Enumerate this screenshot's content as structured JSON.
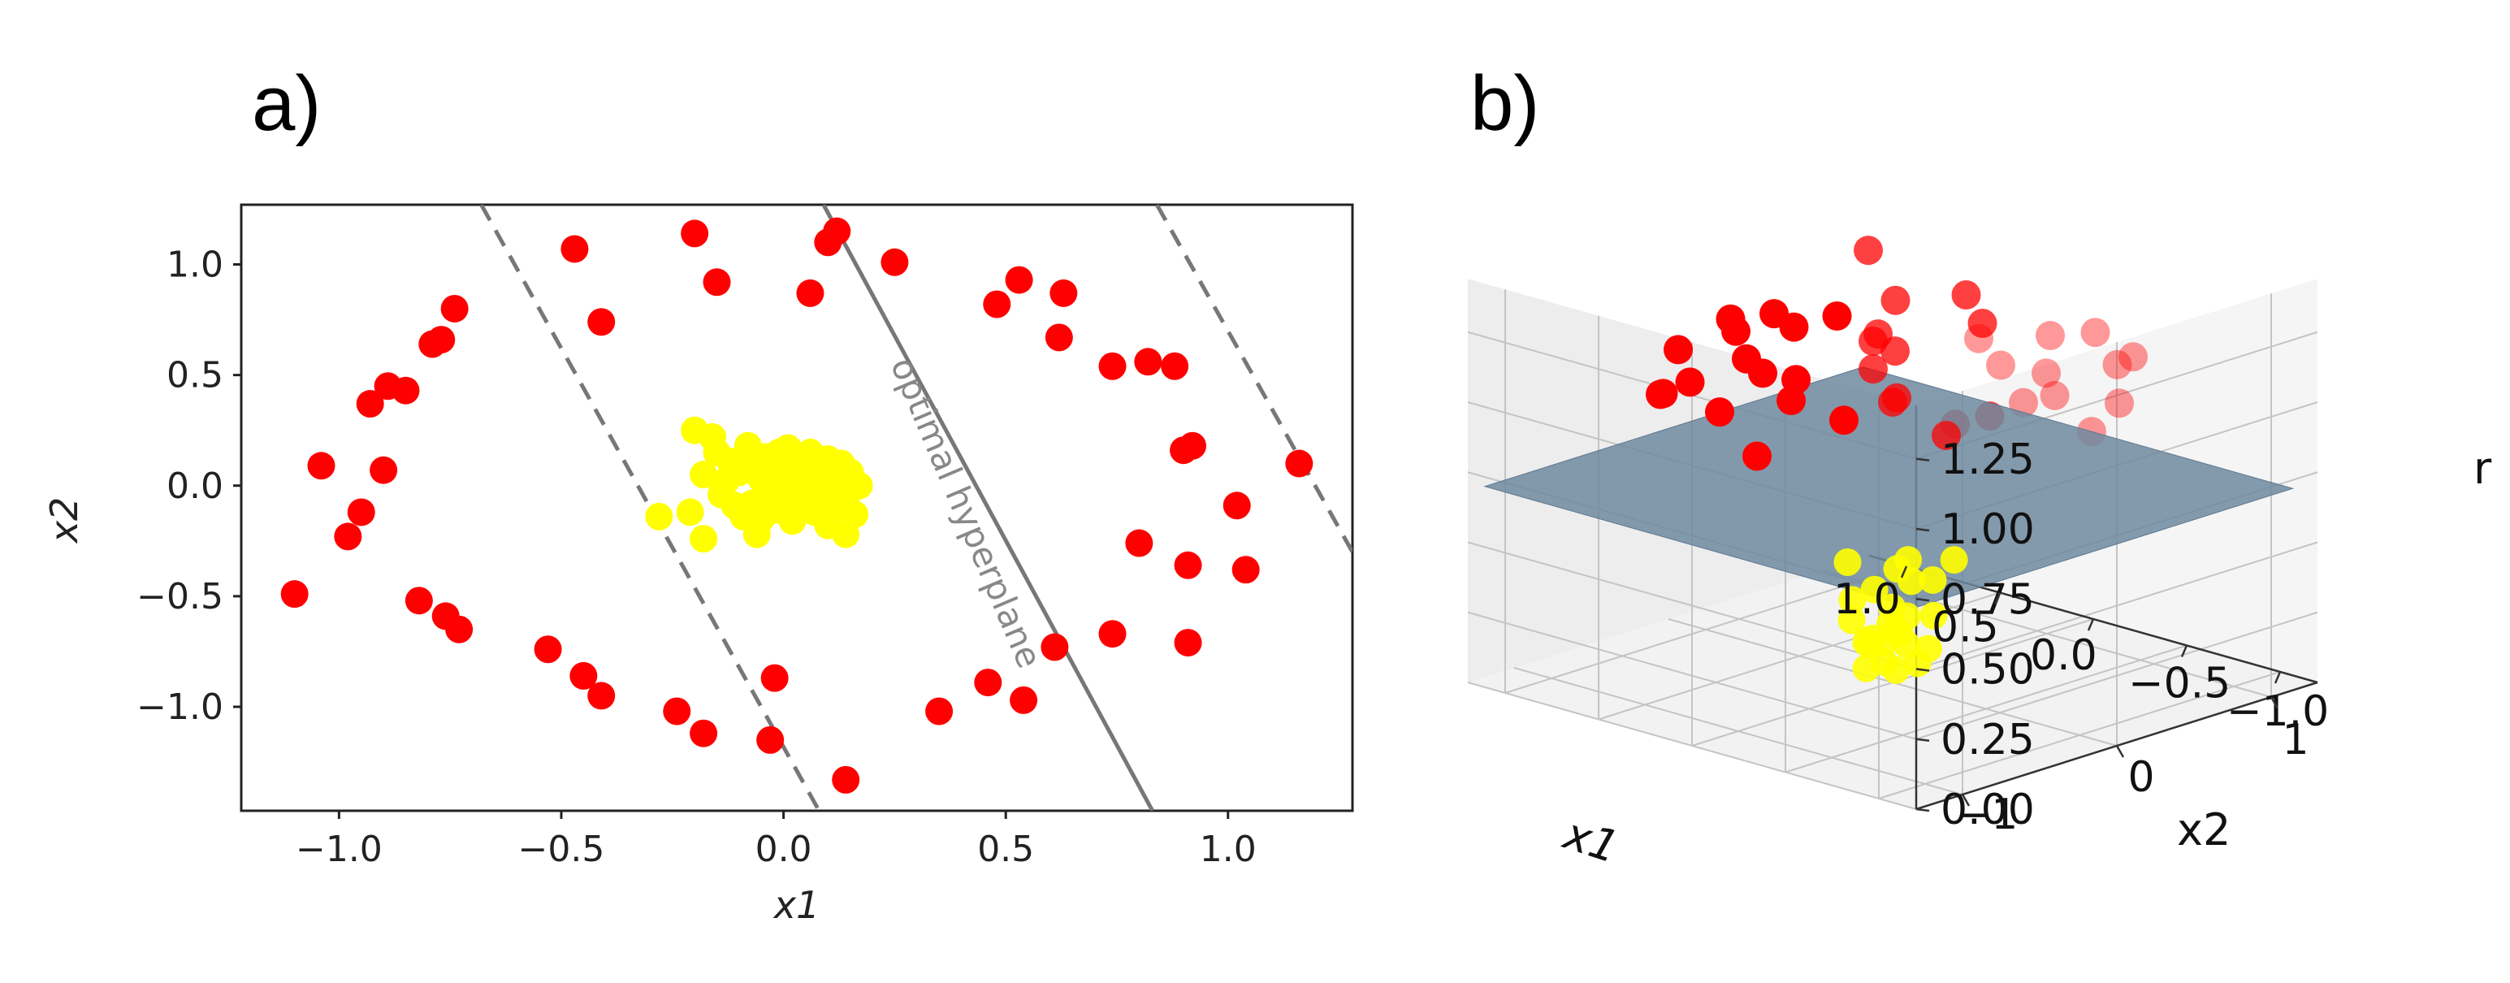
{
  "colors": {
    "class_outer": "#ff0000",
    "class_inner": "#ffff00",
    "plane": "#6f8aa0",
    "dash": "#777777",
    "solid": "#777777"
  },
  "panels": {
    "a_label": "a)",
    "b_label": "b)"
  },
  "chart_data": [
    {
      "type": "scatter",
      "panel": "a)",
      "xlabel": "x1",
      "ylabel": "x2",
      "xlim": [
        -1.22,
        1.28
      ],
      "ylim": [
        -1.47,
        1.27
      ],
      "xticks": [
        -1.0,
        -0.5,
        0.0,
        0.5,
        1.0
      ],
      "yticks": [
        1.0,
        0.5,
        0.0,
        -0.5,
        -1.0
      ],
      "xtick_labels": [
        "−1.0",
        "−0.5",
        "0.0",
        "0.5",
        "1.0"
      ],
      "ytick_labels": [
        "1.0",
        "0.5",
        "0.0",
        "−0.5",
        "−1.0"
      ],
      "annotation": "optimal hyperplane",
      "lines": [
        {
          "style": "dashed",
          "x": [
            -0.68,
            0.08
          ],
          "y": [
            1.27,
            -1.47
          ]
        },
        {
          "style": "solid",
          "x": [
            0.09,
            0.83
          ],
          "y": [
            1.27,
            -1.47
          ]
        },
        {
          "style": "dashed",
          "x": [
            0.84,
            1.28
          ],
          "y": [
            1.27,
            -0.3
          ]
        }
      ],
      "series": [
        {
          "color": "#ff0000",
          "points": [
            [
              -1.1,
              -0.49
            ],
            [
              -1.04,
              0.09
            ],
            [
              -0.98,
              -0.23
            ],
            [
              -0.95,
              -0.12
            ],
            [
              -0.93,
              0.37
            ],
            [
              -0.9,
              0.07
            ],
            [
              -0.89,
              0.45
            ],
            [
              -0.85,
              0.43
            ],
            [
              -0.82,
              -0.52
            ],
            [
              -0.79,
              0.64
            ],
            [
              -0.77,
              0.66
            ],
            [
              -0.76,
              -0.59
            ],
            [
              -0.74,
              0.8
            ],
            [
              -0.73,
              -0.65
            ],
            [
              -0.53,
              -0.74
            ],
            [
              -0.47,
              1.07
            ],
            [
              -0.45,
              -0.86
            ],
            [
              -0.41,
              0.74
            ],
            [
              -0.41,
              -0.95
            ],
            [
              -0.24,
              -1.02
            ],
            [
              -0.2,
              1.14
            ],
            [
              -0.18,
              -1.12
            ],
            [
              -0.15,
              0.92
            ],
            [
              -0.03,
              -1.15
            ],
            [
              -0.02,
              -0.87
            ],
            [
              0.06,
              0.87
            ],
            [
              0.1,
              1.1
            ],
            [
              0.12,
              1.15
            ],
            [
              0.14,
              -1.33
            ],
            [
              0.25,
              1.01
            ],
            [
              0.35,
              -1.02
            ],
            [
              0.46,
              -0.89
            ],
            [
              0.48,
              0.82
            ],
            [
              0.53,
              0.93
            ],
            [
              0.54,
              -0.97
            ],
            [
              0.61,
              -0.73
            ],
            [
              0.62,
              0.67
            ],
            [
              0.63,
              0.87
            ],
            [
              0.74,
              0.54
            ],
            [
              0.74,
              -0.67
            ],
            [
              0.8,
              -0.26
            ],
            [
              0.82,
              0.56
            ],
            [
              0.88,
              0.54
            ],
            [
              0.9,
              0.16
            ],
            [
              0.91,
              -0.36
            ],
            [
              0.91,
              -0.71
            ],
            [
              0.92,
              0.18
            ],
            [
              1.02,
              -0.09
            ],
            [
              1.04,
              -0.38
            ],
            [
              1.16,
              0.1
            ]
          ]
        },
        {
          "color": "#ffff00",
          "points": [
            [
              -0.28,
              -0.14
            ],
            [
              -0.21,
              -0.12
            ],
            [
              -0.2,
              0.25
            ],
            [
              -0.18,
              0.05
            ],
            [
              -0.18,
              -0.24
            ],
            [
              -0.16,
              0.22
            ],
            [
              -0.15,
              0.15
            ],
            [
              -0.14,
              -0.04
            ],
            [
              -0.13,
              0.02
            ],
            [
              -0.12,
              0.11
            ],
            [
              -0.11,
              -0.09
            ],
            [
              -0.1,
              0.06
            ],
            [
              -0.09,
              -0.14
            ],
            [
              -0.08,
              0.08
            ],
            [
              -0.08,
              0.18
            ],
            [
              -0.07,
              -0.08
            ],
            [
              -0.06,
              -0.22
            ],
            [
              -0.05,
              0.03
            ],
            [
              -0.05,
              -0.15
            ],
            [
              -0.04,
              0.13
            ],
            [
              -0.03,
              -0.03
            ],
            [
              -0.02,
              0.06
            ],
            [
              -0.02,
              -0.11
            ],
            [
              -0.01,
              0.15
            ],
            [
              0.0,
              -0.06
            ],
            [
              0.01,
              0.04
            ],
            [
              0.01,
              0.17
            ],
            [
              0.02,
              -0.16
            ],
            [
              0.03,
              0.08
            ],
            [
              0.03,
              -0.03
            ],
            [
              0.04,
              0.12
            ],
            [
              0.05,
              -0.09
            ],
            [
              0.06,
              0.02
            ],
            [
              0.06,
              0.15
            ],
            [
              0.07,
              -0.12
            ],
            [
              0.08,
              0.07
            ],
            [
              0.09,
              -0.04
            ],
            [
              0.1,
              0.12
            ],
            [
              0.1,
              -0.18
            ],
            [
              0.11,
              0.03
            ],
            [
              0.12,
              -0.1
            ],
            [
              0.13,
              0.1
            ],
            [
              0.14,
              -0.22
            ],
            [
              0.14,
              -0.06
            ],
            [
              0.15,
              0.06
            ],
            [
              0.16,
              -0.13
            ],
            [
              0.17,
              0.0
            ]
          ]
        }
      ]
    },
    {
      "type": "scatter3d",
      "panel": "b)",
      "xlabel": "x1",
      "ylabel": "x2",
      "zlabel": "r",
      "xtick_labels": [
        "1.0",
        "0.5",
        "0.0",
        "−0.5",
        "−1.0"
      ],
      "ytick_labels": [
        "1",
        "0",
        "−1"
      ],
      "ztick_labels": [
        "1.25",
        "1.00",
        "0.75",
        "0.50",
        "0.25",
        "0.00"
      ],
      "zticks": [
        1.25,
        1.0,
        0.75,
        0.5,
        0.25,
        0.0
      ],
      "plane_z": 0.7,
      "series": [
        {
          "color": "#ff0000",
          "points": [
            [
              -0.1,
              0.9,
              1.1
            ],
            [
              0.2,
              0.8,
              1.05
            ],
            [
              0.4,
              0.5,
              1.02
            ],
            [
              0.7,
              -0.1,
              1.04
            ],
            [
              0.9,
              -0.3,
              1.07
            ],
            [
              0.5,
              -0.9,
              1.09
            ],
            [
              0.1,
              -1.0,
              1.12
            ],
            [
              -0.4,
              -0.8,
              1.15
            ],
            [
              -0.7,
              -0.5,
              1.1
            ],
            [
              -0.9,
              0.2,
              1.03
            ],
            [
              -0.8,
              0.5,
              1.06
            ],
            [
              -0.5,
              0.85,
              1.08
            ],
            [
              0.0,
              0.7,
              1.01
            ],
            [
              0.6,
              0.6,
              1.0
            ],
            [
              0.8,
              0.2,
              1.13
            ],
            [
              0.3,
              -0.95,
              1.18
            ],
            [
              -0.2,
              -0.9,
              1.2
            ],
            [
              -0.6,
              -0.7,
              1.25
            ],
            [
              -0.95,
              -0.1,
              1.22
            ],
            [
              -0.75,
              0.65,
              1.19
            ],
            [
              -0.3,
              0.95,
              1.14
            ],
            [
              0.35,
              0.9,
              1.16
            ],
            [
              0.95,
              0.1,
              1.1
            ],
            [
              0.65,
              -0.7,
              1.03
            ],
            [
              -0.1,
              -1.0,
              1.0
            ],
            [
              0.0,
              0.0,
              1.0
            ],
            [
              0.45,
              0.45,
              1.08
            ],
            [
              -0.45,
              0.45,
              1.11
            ],
            [
              0.2,
              -0.6,
              1.17
            ],
            [
              -0.5,
              -0.2,
              1.05
            ],
            [
              0.9,
              0.45,
              1.02
            ],
            [
              0.55,
              -0.35,
              1.21
            ],
            [
              -0.15,
              0.4,
              1.24
            ],
            [
              -0.7,
              0.0,
              1.13
            ],
            [
              0.75,
              0.75,
              1.27
            ],
            [
              -0.35,
              -0.55,
              1.28
            ],
            [
              0.15,
              0.2,
              1.3
            ],
            [
              -0.85,
              -0.4,
              1.18
            ],
            [
              0.05,
              -0.3,
              1.35
            ],
            [
              0.6,
              0.1,
              0.95
            ]
          ]
        },
        {
          "color": "#ffff00",
          "points": [
            [
              -0.05,
              0.1,
              0.06
            ],
            [
              0.1,
              -0.05,
              0.04
            ],
            [
              -0.1,
              -0.1,
              0.08
            ],
            [
              0.05,
              0.15,
              0.1
            ],
            [
              0.15,
              0.05,
              0.12
            ],
            [
              -0.15,
              0.05,
              0.14
            ],
            [
              0.0,
              -0.15,
              0.16
            ],
            [
              0.08,
              0.08,
              0.18
            ],
            [
              -0.08,
              -0.05,
              0.2
            ],
            [
              0.12,
              -0.12,
              0.22
            ],
            [
              -0.12,
              0.12,
              0.24
            ],
            [
              0.02,
              0.02,
              0.26
            ],
            [
              0.18,
              0.1,
              0.28
            ],
            [
              -0.2,
              -0.15,
              0.3
            ],
            [
              0.05,
              -0.2,
              0.32
            ],
            [
              -0.05,
              0.2,
              0.34
            ],
            [
              0.1,
              0.15,
              0.36
            ],
            [
              -0.1,
              0.0,
              0.38
            ],
            [
              0.2,
              -0.05,
              0.4
            ],
            [
              0.0,
              0.1,
              0.42
            ],
            [
              -0.18,
              0.18,
              0.44
            ],
            [
              0.15,
              0.2,
              0.12
            ],
            [
              -0.02,
              -0.08,
              0.09
            ],
            [
              0.06,
              -0.1,
              0.15
            ],
            [
              -0.12,
              -0.2,
              0.2
            ]
          ]
        }
      ]
    }
  ]
}
